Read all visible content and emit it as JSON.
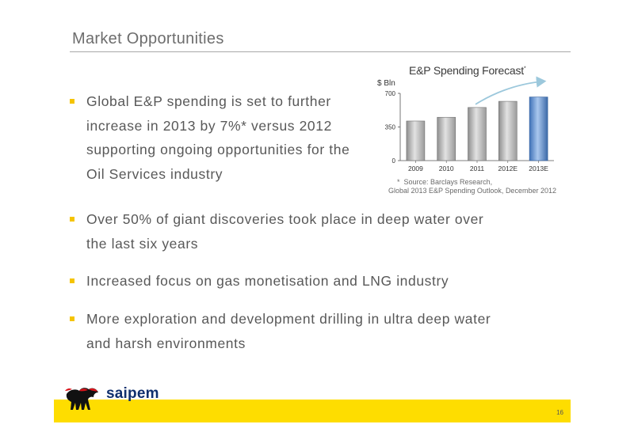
{
  "slide": {
    "title": "Market Opportunities",
    "page_number": "16",
    "logo_text": "saipem",
    "accent_color": "#fedd00",
    "bullet_color": "#f5c400"
  },
  "bullets": [
    {
      "text": "Global E&P spending is set to further\nincrease in 2013 by 7%* versus 2012\nsupporting ongoing opportunities for the\nOil Services industry"
    },
    {
      "text": "Over 50% of giant discoveries took place in deep water over\nthe last six years"
    },
    {
      "text": "Increased focus on gas monetisation and LNG industry"
    },
    {
      "text": "More exploration and development drilling in ultra deep water\nand harsh environments"
    }
  ],
  "chart_data": {
    "type": "bar",
    "title": "E&P Spending Forecast",
    "title_marker": "*",
    "ylabel": "$ Bln",
    "categories": [
      "2009",
      "2010",
      "2011",
      "2012E",
      "2013E"
    ],
    "values": [
      412,
      451,
      553,
      617,
      662
    ],
    "ylim": [
      0,
      700
    ],
    "yticks": [
      "0",
      "350",
      "700"
    ],
    "highlight_category": "2013E",
    "bar_color": "#c0c0c0",
    "highlight_color": "#5a8fd0",
    "trend_arrow": true,
    "grid": false
  },
  "source_note": {
    "marker": "*",
    "line1": "Source: Barclays Research,",
    "line2": "Global 2013 E&P Spending Outlook, December 2012"
  }
}
